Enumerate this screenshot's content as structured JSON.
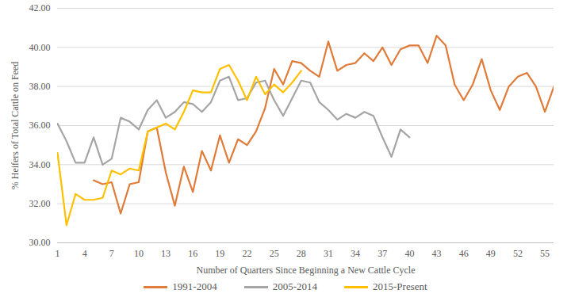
{
  "chart_data": {
    "type": "line",
    "x_label": "Number of Quarters Since Beginning a New Cattle Cycle",
    "y_label": "% Heifers of Total Cattle on Feed",
    "x": [
      1,
      2,
      3,
      4,
      5,
      6,
      7,
      8,
      9,
      10,
      11,
      12,
      13,
      14,
      15,
      16,
      17,
      18,
      19,
      20,
      21,
      22,
      23,
      24,
      25,
      26,
      27,
      28,
      29,
      30,
      31,
      32,
      33,
      34,
      35,
      36,
      37,
      38,
      39,
      40,
      41,
      42,
      43,
      44,
      45,
      46,
      47,
      48,
      49,
      50,
      51,
      52,
      53,
      54,
      55,
      56
    ],
    "xlim": [
      1,
      56
    ],
    "xticks": [
      1,
      4,
      7,
      10,
      13,
      16,
      19,
      22,
      25,
      28,
      31,
      34,
      37,
      40,
      43,
      46,
      49,
      52,
      55
    ],
    "ylim": [
      30,
      42
    ],
    "yticks": [
      {
        "value": 30,
        "label": "30.00"
      },
      {
        "value": 32,
        "label": "32.00"
      },
      {
        "value": 34,
        "label": "34.00"
      },
      {
        "value": 36,
        "label": "36.00"
      },
      {
        "value": 38,
        "label": "38.00"
      },
      {
        "value": 40,
        "label": "40.00"
      },
      {
        "value": 42,
        "label": "42.00"
      }
    ],
    "grid": true,
    "legend": "bottom",
    "series": [
      {
        "name": "1991-2004",
        "color": "#E07B39",
        "values": [
          null,
          null,
          null,
          null,
          33.2,
          33.0,
          33.1,
          31.5,
          33.0,
          33.1,
          35.7,
          35.9,
          33.6,
          31.9,
          33.9,
          32.6,
          34.7,
          33.7,
          35.5,
          34.1,
          35.3,
          35.0,
          35.7,
          36.9,
          38.9,
          38.1,
          39.3,
          39.2,
          38.8,
          38.5,
          40.3,
          38.8,
          39.1,
          39.2,
          39.7,
          39.3,
          40.0,
          39.1,
          39.9,
          40.1,
          40.1,
          39.2,
          40.6,
          40.1,
          38.1,
          37.3,
          38.1,
          39.4,
          37.8,
          36.8,
          38.0,
          38.5,
          38.7,
          38.0,
          36.7,
          38.0
        ]
      },
      {
        "name": "2005-2014",
        "color": "#A5A5A5",
        "values": [
          36.1,
          35.2,
          34.1,
          34.1,
          35.4,
          34.0,
          34.3,
          36.4,
          36.2,
          35.8,
          36.8,
          37.3,
          36.4,
          36.7,
          37.2,
          37.1,
          36.7,
          37.2,
          38.3,
          38.5,
          37.3,
          37.4,
          38.2,
          38.3,
          37.3,
          36.5,
          37.4,
          38.3,
          38.2,
          37.2,
          36.8,
          36.3,
          36.6,
          36.4,
          36.7,
          36.5,
          35.4,
          34.4,
          35.8,
          35.4,
          null,
          null,
          null,
          null,
          null,
          null,
          null,
          null,
          null,
          null,
          null,
          null,
          null,
          null,
          null,
          null
        ]
      },
      {
        "name": "2015-Present",
        "color": "#FFC000",
        "values": [
          34.6,
          30.9,
          32.5,
          32.2,
          32.2,
          32.3,
          33.7,
          33.5,
          33.8,
          33.7,
          35.7,
          35.9,
          36.1,
          35.8,
          36.7,
          37.8,
          37.7,
          37.7,
          38.9,
          39.1,
          38.3,
          37.3,
          38.5,
          37.6,
          38.1,
          37.7,
          38.2,
          38.8,
          null,
          null,
          null,
          null,
          null,
          null,
          null,
          null,
          null,
          null,
          null,
          null,
          null,
          null,
          null,
          null,
          null,
          null,
          null,
          null,
          null,
          null,
          null,
          null,
          null,
          null,
          null,
          null
        ]
      }
    ]
  }
}
